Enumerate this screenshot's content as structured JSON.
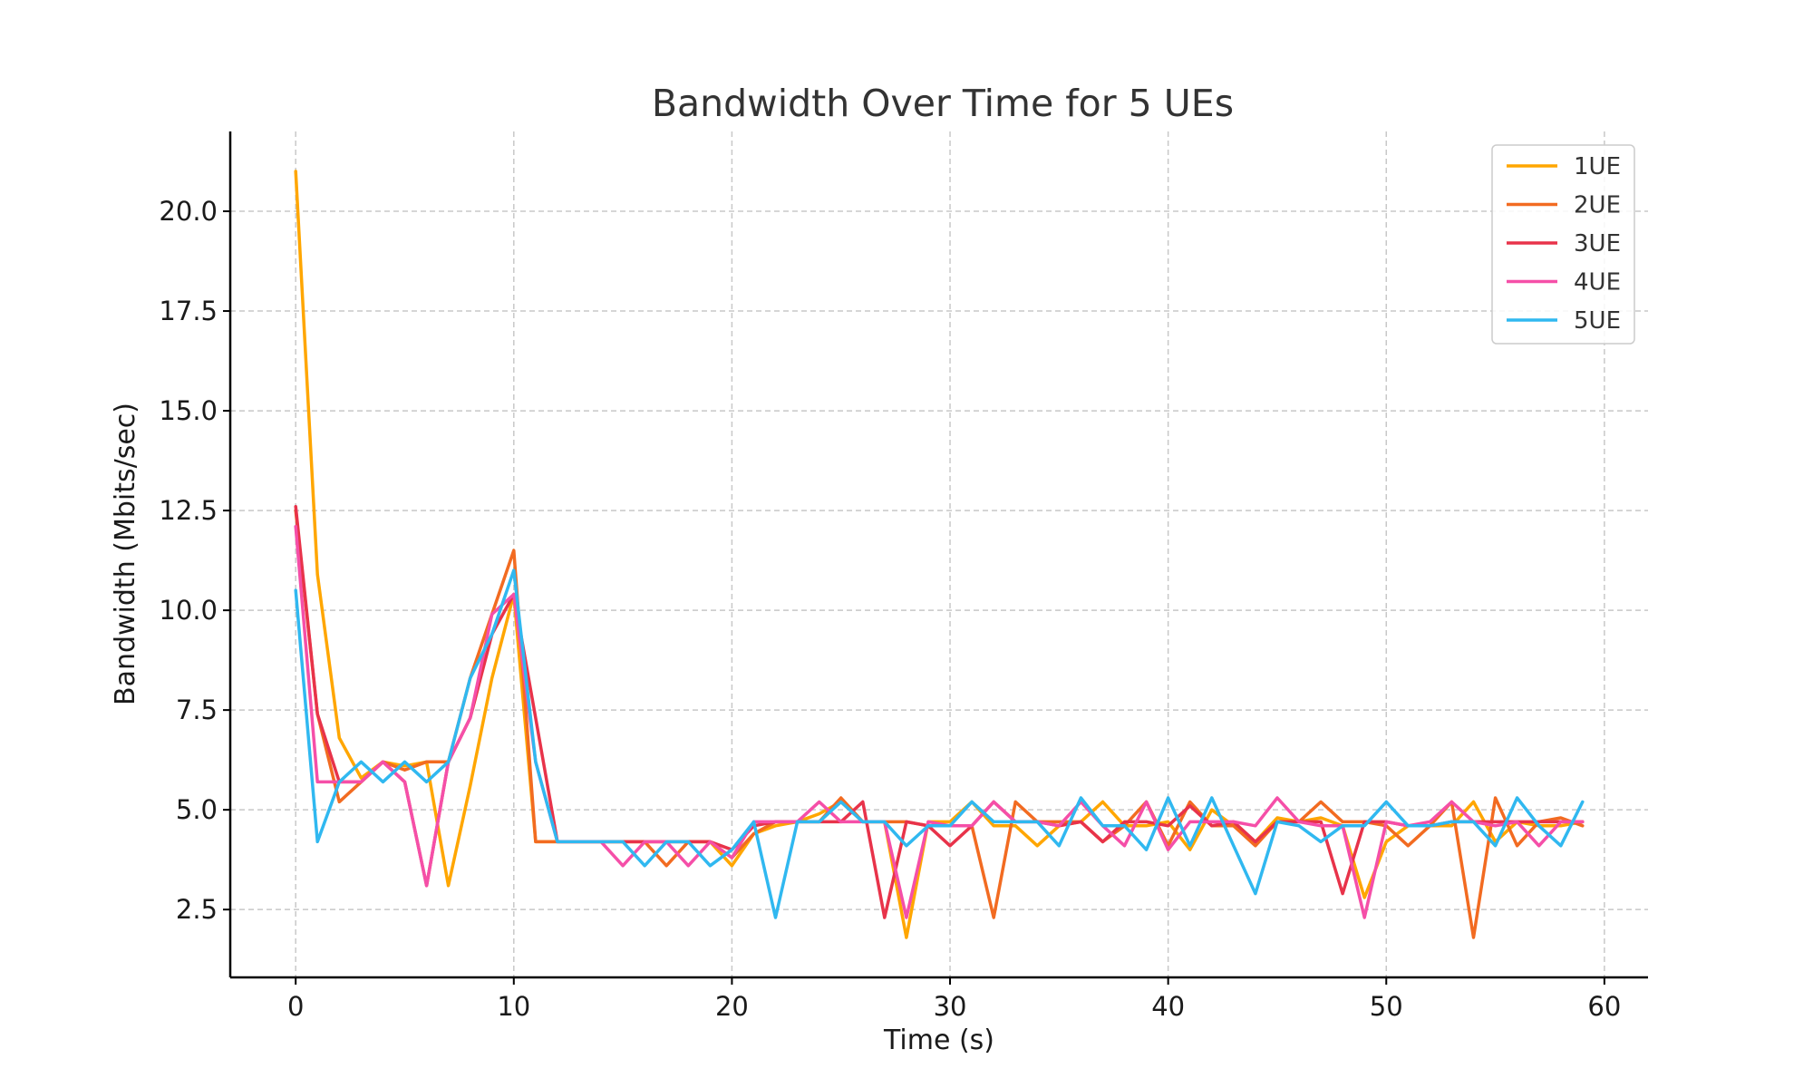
{
  "chart_data": {
    "type": "line",
    "title": "Bandwidth Over Time for 5 UEs",
    "xlabel": "Time (s)",
    "ylabel": "Bandwidth (Mbits/sec)",
    "xlim": [
      -3,
      62
    ],
    "ylim": [
      0.8,
      22
    ],
    "xticks": [
      0,
      10,
      20,
      30,
      40,
      50,
      60
    ],
    "xtick_labels": [
      "0",
      "10",
      "20",
      "30",
      "40",
      "50",
      "60"
    ],
    "yticks": [
      2.5,
      5.0,
      7.5,
      10.0,
      12.5,
      15.0,
      17.5,
      20.0
    ],
    "ytick_labels": [
      "2.5",
      "5.0",
      "7.5",
      "10.0",
      "12.5",
      "15.0",
      "17.5",
      "20.0"
    ],
    "grid": true,
    "legend_position": "top-right",
    "x": [
      0,
      1,
      2,
      3,
      4,
      5,
      6,
      7,
      8,
      9,
      10,
      11,
      12,
      13,
      14,
      15,
      16,
      17,
      18,
      19,
      20,
      21,
      22,
      23,
      24,
      25,
      26,
      27,
      28,
      29,
      30,
      31,
      32,
      33,
      34,
      35,
      36,
      37,
      38,
      39,
      40,
      41,
      42,
      43,
      44,
      45,
      46,
      47,
      48,
      49,
      50,
      51,
      52,
      53,
      54,
      55,
      56,
      57,
      58,
      59
    ],
    "series": [
      {
        "name": "1UE",
        "color": "#ffa600",
        "values": [
          21.0,
          10.9,
          6.8,
          5.8,
          6.2,
          6.1,
          6.2,
          3.1,
          5.6,
          8.3,
          10.4,
          4.2,
          4.2,
          4.2,
          4.2,
          4.2,
          4.2,
          4.2,
          4.2,
          4.2,
          3.6,
          4.4,
          4.6,
          4.7,
          4.9,
          5.2,
          4.7,
          4.7,
          1.8,
          4.7,
          4.7,
          5.2,
          4.6,
          4.6,
          4.1,
          4.6,
          4.7,
          5.2,
          4.6,
          4.6,
          4.7,
          4.0,
          5.0,
          4.6,
          4.2,
          4.8,
          4.7,
          4.8,
          4.6,
          2.8,
          4.2,
          4.6,
          4.6,
          4.6,
          5.2,
          4.2,
          4.7,
          4.6,
          4.6,
          4.7
        ]
      },
      {
        "name": "2UE",
        "color": "#f26b21",
        "values": [
          12.5,
          7.4,
          5.2,
          5.7,
          6.2,
          6.0,
          6.2,
          6.2,
          8.3,
          9.9,
          11.5,
          4.2,
          4.2,
          4.2,
          4.2,
          4.2,
          4.2,
          3.6,
          4.2,
          4.2,
          3.8,
          4.4,
          4.7,
          4.7,
          4.7,
          5.3,
          4.7,
          4.7,
          4.7,
          4.6,
          4.6,
          4.6,
          2.3,
          5.2,
          4.7,
          4.7,
          4.7,
          4.2,
          4.6,
          5.2,
          4.1,
          5.2,
          4.6,
          4.6,
          4.1,
          4.7,
          4.7,
          5.2,
          4.7,
          4.7,
          4.6,
          4.1,
          4.6,
          5.2,
          1.8,
          5.3,
          4.1,
          4.7,
          4.8,
          4.6
        ]
      },
      {
        "name": "3UE",
        "color": "#e8334a",
        "values": [
          12.6,
          7.4,
          5.7,
          5.7,
          6.2,
          5.7,
          3.1,
          6.2,
          7.3,
          9.4,
          10.4,
          7.3,
          4.2,
          4.2,
          4.2,
          4.2,
          4.2,
          4.2,
          4.2,
          4.2,
          4.0,
          4.6,
          4.7,
          4.7,
          4.7,
          4.7,
          5.2,
          2.3,
          4.7,
          4.6,
          4.1,
          4.6,
          5.2,
          4.7,
          4.7,
          4.6,
          4.7,
          4.2,
          4.7,
          4.7,
          4.6,
          5.1,
          4.6,
          4.7,
          4.2,
          4.7,
          4.7,
          4.7,
          2.9,
          4.7,
          4.7,
          4.6,
          4.6,
          4.7,
          4.7,
          4.7,
          4.7,
          4.7,
          4.7,
          4.7
        ]
      },
      {
        "name": "4UE",
        "color": "#f54fa8",
        "values": [
          12.1,
          5.7,
          5.7,
          5.7,
          6.2,
          5.7,
          3.1,
          6.2,
          7.3,
          9.9,
          10.4,
          6.2,
          4.2,
          4.2,
          4.2,
          3.6,
          4.2,
          4.2,
          3.6,
          4.2,
          3.8,
          4.7,
          4.7,
          4.7,
          5.2,
          4.7,
          4.7,
          4.7,
          2.3,
          4.7,
          4.6,
          4.6,
          5.2,
          4.7,
          4.7,
          4.6,
          5.2,
          4.6,
          4.1,
          5.2,
          4.0,
          4.7,
          4.7,
          4.7,
          4.6,
          5.3,
          4.7,
          4.6,
          4.6,
          2.3,
          4.7,
          4.6,
          4.7,
          5.2,
          4.7,
          4.6,
          4.7,
          4.1,
          4.7,
          4.7
        ]
      },
      {
        "name": "5UE",
        "color": "#30b8f0",
        "values": [
          10.5,
          4.2,
          5.7,
          6.2,
          5.7,
          6.2,
          5.7,
          6.2,
          8.3,
          9.4,
          11.0,
          6.2,
          4.2,
          4.2,
          4.2,
          4.2,
          3.6,
          4.2,
          4.2,
          3.6,
          4.0,
          4.7,
          2.3,
          4.7,
          4.7,
          5.2,
          4.7,
          4.7,
          4.1,
          4.6,
          4.6,
          5.2,
          4.7,
          4.7,
          4.7,
          4.1,
          5.3,
          4.6,
          4.6,
          4.0,
          5.3,
          4.1,
          5.3,
          4.1,
          2.9,
          4.7,
          4.6,
          4.2,
          4.6,
          4.6,
          5.2,
          4.6,
          4.6,
          4.7,
          4.7,
          4.1,
          5.3,
          4.6,
          4.1,
          5.2
        ]
      }
    ]
  }
}
